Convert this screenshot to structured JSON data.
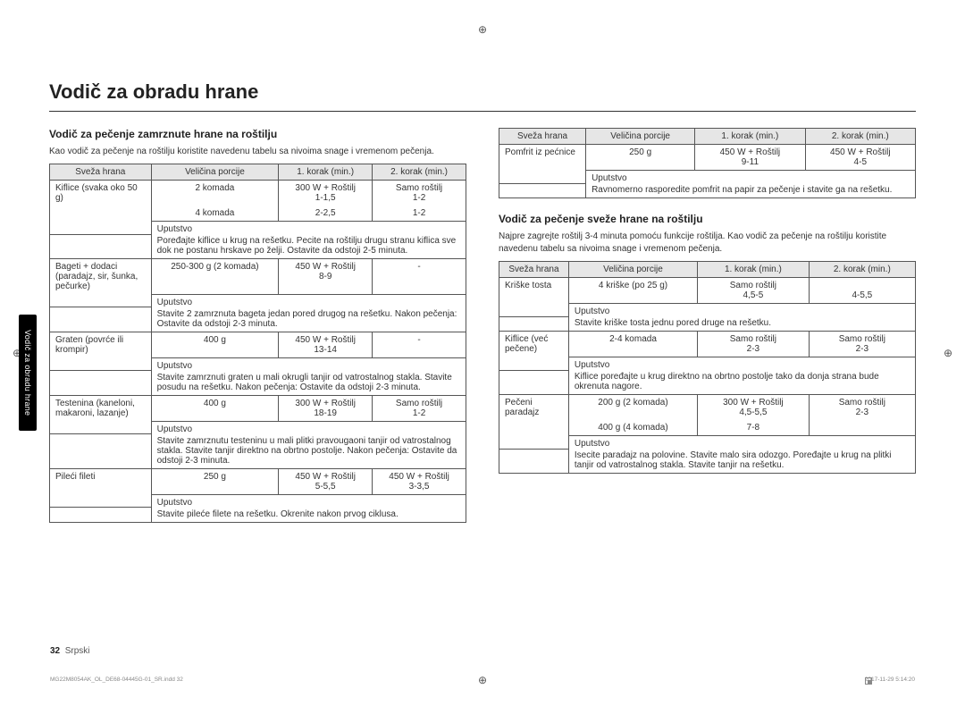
{
  "title": "Vodič za obradu hrane",
  "sideTab": "Vodič za obradu hrane",
  "pageNum": "32",
  "pageLang": "Srpski",
  "footLeft": "MG22M8054AK_OL_DE68-04445G-01_SR.indd   32",
  "footRight": "2017-11-29   5:14:20",
  "section1": {
    "title": "Vodič za pečenje zamrznute hrane na roštilju",
    "intro": "Kao vodič za pečenje na roštilju koristite navedenu tabelu sa nivoima snage i vremenom pečenja.",
    "headers": {
      "h1": "Sveža hrana",
      "h2": "Veličina porcije",
      "h3": "1. korak (min.)",
      "h4": "2. korak (min.)"
    },
    "rows": [
      {
        "name": "Kiflice (svaka oko 50 g)",
        "p1": "2 komada",
        "s1a": "300 W + Roštilj",
        "s1b": "1-1,5",
        "s2a": "Samo roštilj",
        "s2b": "1-2",
        "p2": "4 komada",
        "s1c": "2-2,5",
        "s2c": "1-2",
        "uLabel": "Uputstvo",
        "uText": "Poređajte kiflice u krug na rešetku. Pecite na roštilju drugu stranu kiflica sve dok ne postanu hrskave po želji. Ostavite da odstoji 2-5 minuta."
      },
      {
        "name": "Bageti + dodaci (paradajz, sir, šunka, pečurke)",
        "p1": "250-300 g (2 komada)",
        "s1a": "450 W + Roštilj",
        "s1b": "8-9",
        "s2a": "-",
        "uLabel": "Uputstvo",
        "uText": "Stavite 2 zamrznuta bageta jedan pored drugog na rešetku. Nakon pečenja: Ostavite da odstoji 2-3 minuta."
      },
      {
        "name": "Graten (povrće ili krompir)",
        "p1": "400 g",
        "s1a": "450 W + Roštilj",
        "s1b": "13-14",
        "s2a": "-",
        "uLabel": "Uputstvo",
        "uText": "Stavite zamrznuti graten u mali okrugli tanjir od vatrostalnog stakla. Stavite posudu na rešetku. Nakon pečenja: Ostavite da odstoji 2-3 minuta."
      },
      {
        "name": "Testenina (kaneloni, makaroni, lazanje)",
        "p1": "400 g",
        "s1a": "300 W + Roštilj",
        "s1b": "18-19",
        "s2a": "Samo roštilj",
        "s2b": "1-2",
        "uLabel": "Uputstvo",
        "uText": "Stavite zamrznutu testeninu u mali plitki pravougaoni tanjir od vatrostalnog stakla. Stavite tanjir direktno na obrtno postolje. Nakon pečenja: Ostavite da odstoji 2-3 minuta."
      },
      {
        "name": "Pileći fileti",
        "p1": "250 g",
        "s1a": "450 W + Roštilj",
        "s1b": "5-5,5",
        "s2a": "450 W + Roštilj",
        "s2b": "3-3,5",
        "uLabel": "Uputstvo",
        "uText": "Stavite pileće filete na rešetku. Okrenite nakon prvog ciklusa."
      }
    ]
  },
  "section2": {
    "headers": {
      "h1": "Sveža hrana",
      "h2": "Veličina porcije",
      "h3": "1. korak (min.)",
      "h4": "2. korak (min.)"
    },
    "row": {
      "name": "Pomfrit iz pećnice",
      "p1": "250 g",
      "s1a": "450 W + Roštilj",
      "s1b": "9-11",
      "s2a": "450 W + Roštilj",
      "s2b": "4-5",
      "uLabel": "Uputstvo",
      "uText": "Ravnomerno rasporedite pomfrit na papir za pečenje i stavite ga na rešetku."
    }
  },
  "section3": {
    "title": "Vodič za pečenje sveže hrane na roštilju",
    "intro": "Najpre zagrejte roštilj 3-4 minuta pomoću funkcije roštilja. Kao vodič za pečenje na roštilju koristite navedenu tabelu sa nivoima snage i vremenom pečenja.",
    "headers": {
      "h1": "Sveža hrana",
      "h2": "Veličina porcije",
      "h3": "1. korak (min.)",
      "h4": "2. korak (min.)"
    },
    "rows": [
      {
        "name": "Kriške tosta",
        "p1": "4 kriške (po 25 g)",
        "s1a": "Samo roštilj",
        "s1b": "4,5-5",
        "s2a": "",
        "s2b": "4-5,5",
        "uLabel": "Uputstvo",
        "uText": "Stavite kriške tosta jednu pored druge na rešetku."
      },
      {
        "name": "Kiflice (već pečene)",
        "p1": "2-4 komada",
        "s1a": "Samo roštilj",
        "s1b": "2-3",
        "s2a": "Samo roštilj",
        "s2b": "2-3",
        "uLabel": "Uputstvo",
        "uText": "Kiflice poređajte u krug direktno na obrtno postolje tako da donja strana bude okrenuta nagore."
      },
      {
        "name": "Pečeni paradajz",
        "p1": "200 g (2 komada)",
        "s1a": "300 W + Roštilj",
        "s1b": "4,5-5,5",
        "s2a": "Samo roštilj",
        "s2b": "2-3",
        "p2": "400 g (4 komada)",
        "s1c": "7-8",
        "uLabel": "Uputstvo",
        "uText": "Isecite paradajz na polovine. Stavite malo sira odozgo. Poređajte u krug na plitki tanjir od vatrostalnog stakla. Stavite tanjir na rešetku."
      }
    ]
  }
}
